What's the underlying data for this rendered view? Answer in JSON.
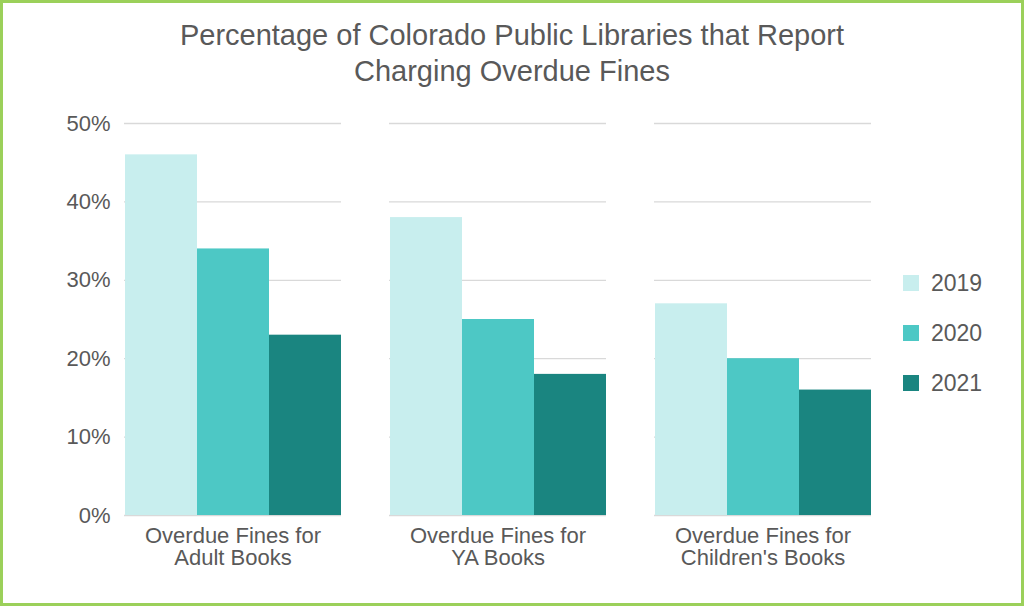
{
  "chart_data": {
    "type": "bar",
    "title": "Percentage of Colorado Public Libraries that Report\nCharging Overdue Fines",
    "categories": [
      "Overdue Fines for\nAdult Books",
      "Overdue Fines for\nYA Books",
      "Overdue Fines for\nChildren's Books"
    ],
    "series": [
      {
        "name": "2019",
        "color": "#c8eeee",
        "values": [
          46,
          38,
          27
        ]
      },
      {
        "name": "2020",
        "color": "#4dc8c5",
        "values": [
          34,
          25,
          20
        ]
      },
      {
        "name": "2021",
        "color": "#1a8580",
        "values": [
          23,
          18,
          16
        ]
      }
    ],
    "ylim": [
      0,
      50
    ],
    "yticks": [
      {
        "value": 0,
        "label": "0%"
      },
      {
        "value": 10,
        "label": "10%"
      },
      {
        "value": 20,
        "label": "20%"
      },
      {
        "value": 30,
        "label": "30%"
      },
      {
        "value": 40,
        "label": "40%"
      },
      {
        "value": 50,
        "label": "50%"
      }
    ],
    "grid": true,
    "legend": "right"
  }
}
